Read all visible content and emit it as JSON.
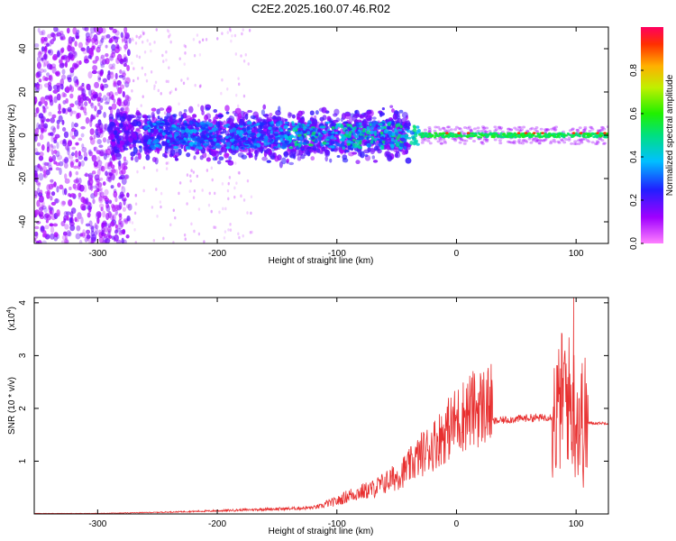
{
  "title": "C2E2.2025.160.07.46.R02",
  "chart_data": [
    {
      "type": "heatmap",
      "xlabel": "Height of straight line (km)",
      "ylabel": "Frequency (Hz)",
      "xlim": [
        -353,
        127
      ],
      "ylim": [
        -50,
        50
      ],
      "xticks": [
        -300,
        -200,
        -100,
        0,
        100
      ],
      "yticks": [
        -40,
        -20,
        0,
        20,
        40
      ],
      "colorbar": {
        "label": "Normalized spectral amplitude",
        "range": [
          0.0,
          1.0
        ],
        "ticks": [
          0.0,
          0.2,
          0.4,
          0.6,
          0.8
        ],
        "colormap": "rainbow (magenta low → red high)"
      },
      "description_regions": [
        {
          "x": [
            -353,
            -280
          ],
          "freq": [
            -50,
            50
          ],
          "amplitude": 0.1,
          "pattern": "scattered purple noise"
        },
        {
          "x": [
            -280,
            -140
          ],
          "freq": [
            -15,
            15
          ],
          "amplitude": 0.15,
          "pattern": "dense purple/blue band"
        },
        {
          "x": [
            -140,
            -30
          ],
          "freq": [
            -15,
            15
          ],
          "amplitude": 0.35,
          "pattern": "blue/cyan band with green spots"
        },
        {
          "x": [
            -30,
            127
          ],
          "freq": [
            -3,
            3
          ],
          "amplitude": 0.55,
          "pattern": "narrow green line with red peaks"
        }
      ]
    },
    {
      "type": "line",
      "xlabel": "Height of straight line (km)",
      "ylabel": "SNR (10 * v/v)",
      "yscale_label": "(x10",
      "yscale_exponent": "4",
      "xlim": [
        -353,
        127
      ],
      "ylim": [
        0,
        4.1
      ],
      "xticks": [
        -300,
        -200,
        -100,
        0,
        100
      ],
      "yticks": [
        1,
        2,
        3,
        4
      ],
      "series": [
        {
          "color": "#e83030",
          "x": [
            -353,
            -300,
            -250,
            -200,
            -160,
            -140,
            -120,
            -100,
            -90,
            -80,
            -70,
            -60,
            -50,
            -40,
            -30,
            -20,
            -10,
            0,
            10,
            20,
            30,
            40,
            50,
            60,
            70,
            80,
            85,
            90,
            95,
            100,
            105,
            110,
            115,
            127
          ],
          "y": [
            0.01,
            0.01,
            0.03,
            0.06,
            0.09,
            0.1,
            0.12,
            0.2,
            0.3,
            0.35,
            0.4,
            0.5,
            0.6,
            0.75,
            0.95,
            1.1,
            1.3,
            1.5,
            1.65,
            1.72,
            1.75,
            1.78,
            1.8,
            1.82,
            1.82,
            1.85,
            1.9,
            2.4,
            2.1,
            1.9,
            1.75,
            1.72,
            1.72,
            1.72
          ],
          "max_spike": {
            "x": 98,
            "y": 4.1
          }
        }
      ]
    }
  ]
}
